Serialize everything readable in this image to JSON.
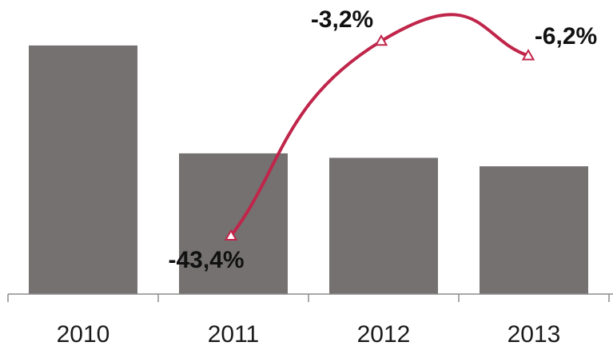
{
  "chart_data": {
    "type": "bar",
    "categories": [
      "2010",
      "2011",
      "2012",
      "2013"
    ],
    "series": [
      {
        "type": "bar",
        "values": [
          100,
          56.6,
          54.8,
          51.4
        ]
      },
      {
        "type": "line",
        "values": [
          null,
          -43.4,
          -3.2,
          -6.2
        ],
        "labels": [
          "",
          "-43,4%",
          "-3,2%",
          "-6,2%"
        ]
      }
    ],
    "ylim": [
      0,
      108
    ],
    "line_ylim": [
      -48,
      0
    ],
    "grid": false,
    "legend": "none"
  },
  "colors": {
    "bar": "#757171",
    "line": "#c0254a",
    "axis": "#8c8c8c"
  }
}
